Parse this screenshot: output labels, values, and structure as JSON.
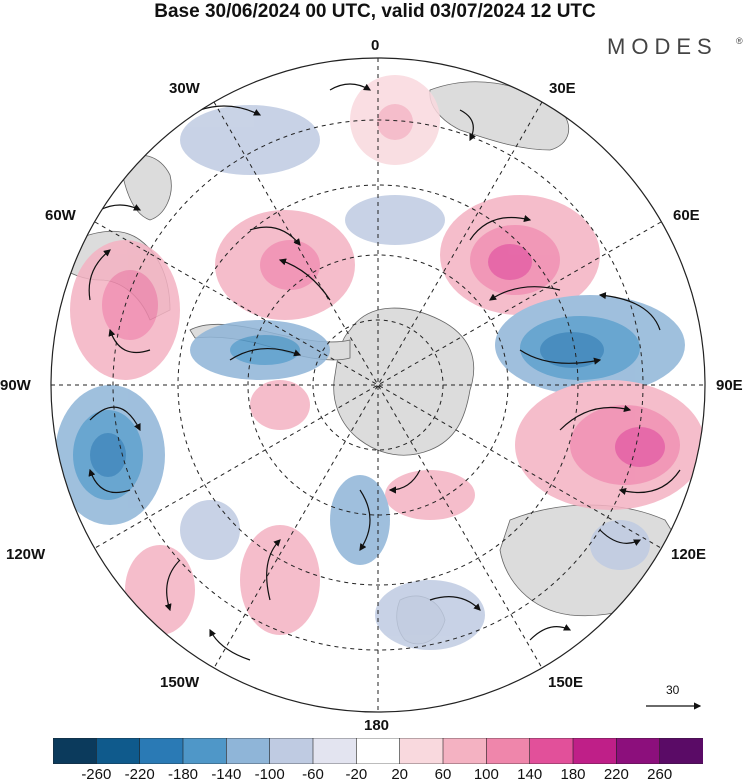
{
  "title": "Base 30/06/2024 00 UTC, valid 03/07/2024 12 UTC",
  "brand": "MODES",
  "brand_mark": "®",
  "longitude_labels": {
    "top": "0",
    "top_right": "30E",
    "right_upper": "60E",
    "right": "90E",
    "right_lower": "120E",
    "bottom_right": "150E",
    "bottom": "180",
    "bottom_left": "150W",
    "left_lower": "120W",
    "left": "90W",
    "left_upper": "60W",
    "top_left": "30W"
  },
  "wind_scale": {
    "label": "30"
  },
  "colorbar": {
    "ticks": [
      "-260",
      "-220",
      "-180",
      "-140",
      "-100",
      "-60",
      "-20",
      "20",
      "60",
      "100",
      "140",
      "180",
      "220",
      "260"
    ],
    "colors": [
      "#0b3a5c",
      "#0f5a8c",
      "#2a7ab5",
      "#4f97c8",
      "#8fb5d8",
      "#bfcbe2",
      "#e3e4f0",
      "#ffffff",
      "#f9d9de",
      "#f4b2c2",
      "#ef86ab",
      "#e2509a",
      "#bf1f88",
      "#8c0f7c",
      "#5a0b66"
    ]
  },
  "colors": {
    "land": "#dcdcdc",
    "grid": "#222222",
    "coast": "#555555"
  }
}
